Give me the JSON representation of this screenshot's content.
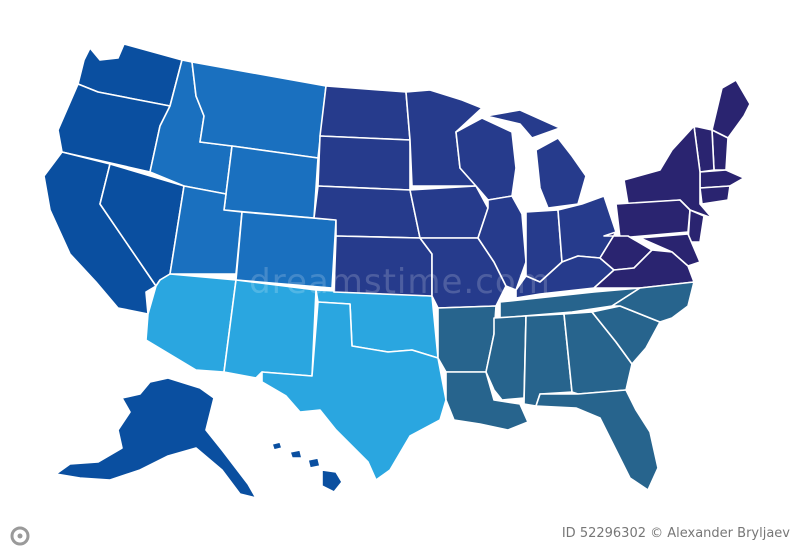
{
  "colors": {
    "northwest": "#0a4fa0",
    "mountain": "#1a70bf",
    "southwest": "#2aa6e0",
    "midwest": "#263b8c",
    "northeast": "#2a2470",
    "southeast": "#27648d",
    "background": "#ffffff"
  },
  "watermark": {
    "text": "dreamstime.com"
  },
  "footer": {
    "id_text": "ID 52296302 © Alexander Bryljaev"
  },
  "regions": [
    {
      "id": "northwest",
      "color_key": "northwest"
    },
    {
      "id": "mountain",
      "color_key": "mountain"
    },
    {
      "id": "southwest",
      "color_key": "southwest"
    },
    {
      "id": "midwest",
      "color_key": "midwest"
    },
    {
      "id": "northeast",
      "color_key": "northeast"
    },
    {
      "id": "southeast",
      "color_key": "southeast"
    }
  ]
}
